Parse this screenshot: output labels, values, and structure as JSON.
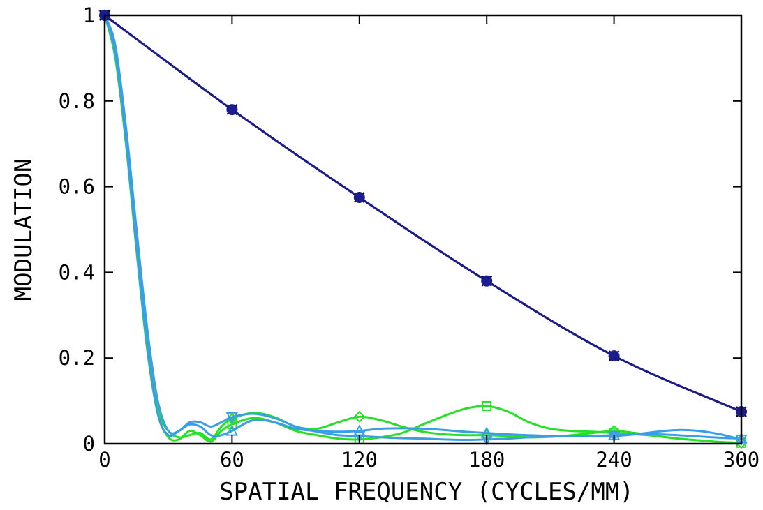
{
  "chart_data": {
    "type": "line",
    "title": "",
    "xlabel": "SPATIAL FREQUENCY (CYCLES/MM)",
    "ylabel": "MODULATION",
    "xlim": [
      0,
      300
    ],
    "ylim": [
      0,
      1
    ],
    "x_ticks": [
      "0",
      "60",
      "120",
      "180",
      "240",
      "300"
    ],
    "y_ticks": [
      "0",
      "0.2",
      "0.4",
      "0.6",
      "0.8",
      "1"
    ],
    "grid": false,
    "legend": "none",
    "series": [
      {
        "color": "#000000",
        "marker": "x",
        "x": [
          0,
          60,
          120,
          180,
          240,
          300
        ],
        "y": [
          1.0,
          0.78,
          0.575,
          0.38,
          0.205,
          0.075
        ]
      },
      {
        "color": "#1c1c8c",
        "marker": "circle",
        "x": [
          0,
          60,
          120,
          180,
          240,
          300
        ],
        "y": [
          1.0,
          0.78,
          0.575,
          0.38,
          0.205,
          0.075
        ]
      },
      {
        "color": "#26e026",
        "marker": "diamond",
        "x": [
          0,
          5,
          10,
          15,
          20,
          25,
          30,
          35,
          40,
          45,
          50,
          55,
          60,
          70,
          80,
          90,
          100,
          110,
          120,
          130,
          140,
          150,
          160,
          170,
          180,
          190,
          200,
          210,
          220,
          230,
          240,
          250,
          260,
          270,
          280,
          290,
          300
        ],
        "y": [
          1.0,
          0.92,
          0.72,
          0.47,
          0.24,
          0.08,
          0.03,
          0.015,
          0.02,
          0.025,
          0.01,
          0.04,
          0.058,
          0.072,
          0.062,
          0.04,
          0.035,
          0.05,
          0.063,
          0.055,
          0.04,
          0.028,
          0.022,
          0.02,
          0.02,
          0.018,
          0.015,
          0.016,
          0.02,
          0.025,
          0.03,
          0.025,
          0.018,
          0.012,
          0.008,
          0.004,
          0.002
        ]
      },
      {
        "color": "#26e026",
        "marker": "square",
        "x": [
          0,
          5,
          10,
          15,
          20,
          25,
          30,
          35,
          40,
          45,
          50,
          55,
          60,
          70,
          80,
          90,
          100,
          110,
          120,
          130,
          140,
          150,
          160,
          170,
          180,
          190,
          200,
          210,
          220,
          230,
          240,
          250,
          260,
          270,
          280,
          290,
          300
        ],
        "y": [
          1.0,
          0.9,
          0.7,
          0.45,
          0.22,
          0.07,
          0.015,
          0.01,
          0.03,
          0.02,
          0.005,
          0.03,
          0.045,
          0.06,
          0.05,
          0.03,
          0.02,
          0.012,
          0.01,
          0.015,
          0.025,
          0.045,
          0.065,
          0.082,
          0.088,
          0.075,
          0.05,
          0.035,
          0.03,
          0.028,
          0.025,
          0.022,
          0.018,
          0.012,
          0.008,
          0.004,
          0.002
        ]
      },
      {
        "color": "#3a9ee6",
        "marker": "triangle-up",
        "x": [
          0,
          5,
          10,
          15,
          20,
          25,
          30,
          35,
          40,
          45,
          50,
          55,
          60,
          70,
          80,
          90,
          100,
          110,
          120,
          130,
          140,
          150,
          160,
          170,
          180,
          190,
          200,
          210,
          220,
          230,
          240,
          250,
          260,
          270,
          280,
          290,
          300
        ],
        "y": [
          1.0,
          0.91,
          0.71,
          0.46,
          0.23,
          0.07,
          0.02,
          0.03,
          0.045,
          0.04,
          0.02,
          0.02,
          0.03,
          0.055,
          0.05,
          0.035,
          0.03,
          0.028,
          0.03,
          0.035,
          0.036,
          0.035,
          0.032,
          0.028,
          0.025,
          0.022,
          0.02,
          0.018,
          0.017,
          0.018,
          0.02,
          0.022,
          0.022,
          0.02,
          0.017,
          0.014,
          0.012
        ]
      },
      {
        "color": "#3a9ee6",
        "marker": "triangle-down",
        "x": [
          0,
          5,
          10,
          15,
          20,
          25,
          30,
          35,
          40,
          45,
          50,
          55,
          60,
          70,
          80,
          90,
          100,
          110,
          120,
          130,
          140,
          150,
          160,
          170,
          180,
          190,
          200,
          210,
          220,
          230,
          240,
          250,
          260,
          270,
          280,
          290,
          300
        ],
        "y": [
          1.0,
          0.93,
          0.74,
          0.5,
          0.27,
          0.1,
          0.03,
          0.03,
          0.05,
          0.05,
          0.04,
          0.05,
          0.062,
          0.07,
          0.06,
          0.04,
          0.028,
          0.02,
          0.018,
          0.015,
          0.013,
          0.012,
          0.01,
          0.009,
          0.01,
          0.012,
          0.015,
          0.017,
          0.018,
          0.018,
          0.018,
          0.022,
          0.028,
          0.032,
          0.03,
          0.022,
          0.01
        ]
      }
    ]
  }
}
